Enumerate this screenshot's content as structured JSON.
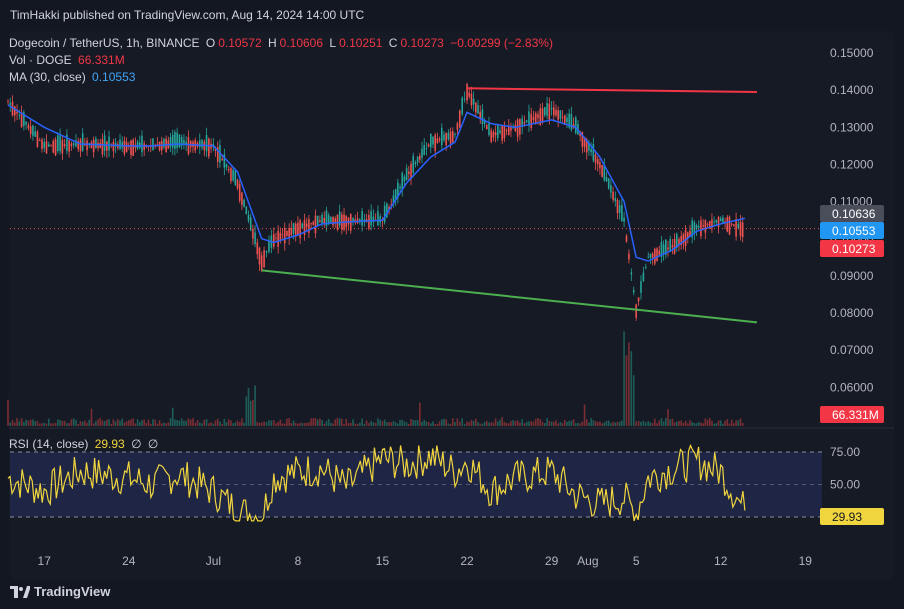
{
  "credit": "TimHakki published on TradingView.com, Aug 14, 2024 14:00 UTC",
  "legend": {
    "symbol": "Dogecoin / TetherUS, 1h, BINANCE",
    "o_label": "O",
    "o_val": "0.10572",
    "h_label": "H",
    "h_val": "0.10606",
    "l_label": "L",
    "l_val": "0.10251",
    "c_label": "C",
    "c_val": "0.10273",
    "change": "−0.00299 (−2.83%)",
    "vol_label": "Vol · DOGE",
    "vol_val": "66.331M",
    "ma_label": "MA (30, close)",
    "ma_val": "0.10553"
  },
  "rsi_legend": {
    "label": "RSI (14, close)",
    "val": "29.93",
    "extra1": "∅",
    "extra2": "∅"
  },
  "price_axis": [
    "0.15000",
    "0.14000",
    "0.13000",
    "0.12000",
    "0.11000",
    "0.10000",
    "0.09000",
    "0.08000",
    "0.07000",
    "0.06000"
  ],
  "tags": {
    "high": "0.10636",
    "ma": "0.10553",
    "close": "0.10273",
    "volume": "66.331M",
    "rsi": "29.93"
  },
  "rsi_axis": [
    "75.00",
    "50.00",
    "25.00"
  ],
  "time_axis": [
    "17",
    "24",
    "Jul",
    "8",
    "15",
    "22",
    "29",
    "Aug",
    "5",
    "12",
    "19"
  ],
  "footer": "TradingView",
  "colors": {
    "up": "#26a69a",
    "down": "#ef5350",
    "ma": "#2962ff",
    "rsi": "#f0d53e",
    "resistance": "#f23645",
    "support": "#4caf50"
  },
  "chart_data": {
    "type": "candlestick",
    "title": "Dogecoin / TetherUS, 1h, BINANCE",
    "ylim": [
      0.055,
      0.155
    ],
    "x": [
      "2024-06-14",
      "2024-06-17",
      "2024-06-20",
      "2024-06-24",
      "2024-06-26",
      "2024-06-28",
      "2024-07-01",
      "2024-07-03",
      "2024-07-05",
      "2024-07-06",
      "2024-07-08",
      "2024-07-10",
      "2024-07-12",
      "2024-07-15",
      "2024-07-17",
      "2024-07-19",
      "2024-07-21",
      "2024-07-22",
      "2024-07-24",
      "2024-07-26",
      "2024-07-29",
      "2024-07-31",
      "2024-08-02",
      "2024-08-04",
      "2024-08-05",
      "2024-08-06",
      "2024-08-08",
      "2024-08-10",
      "2024-08-12",
      "2024-08-14"
    ],
    "close": [
      0.137,
      0.125,
      0.1255,
      0.125,
      0.125,
      0.126,
      0.125,
      0.115,
      0.094,
      0.1,
      0.103,
      0.105,
      0.105,
      0.105,
      0.117,
      0.126,
      0.128,
      0.14,
      0.128,
      0.13,
      0.135,
      0.13,
      0.12,
      0.105,
      0.081,
      0.095,
      0.098,
      0.103,
      0.105,
      0.1027
    ],
    "ma30": [
      0.136,
      0.13,
      0.1255,
      0.125,
      0.125,
      0.1255,
      0.125,
      0.118,
      0.1,
      0.099,
      0.101,
      0.104,
      0.1045,
      0.105,
      0.115,
      0.122,
      0.126,
      0.134,
      0.131,
      0.13,
      0.132,
      0.13,
      0.122,
      0.11,
      0.095,
      0.094,
      0.097,
      0.102,
      0.104,
      0.1055
    ],
    "rsi": [
      55,
      45,
      60,
      55,
      50,
      58,
      45,
      30,
      25,
      55,
      60,
      62,
      48,
      70,
      65,
      72,
      60,
      68,
      45,
      55,
      60,
      42,
      35,
      40,
      28,
      55,
      62,
      68,
      60,
      30
    ],
    "resistance_line": {
      "from": [
        "2024-07-22",
        0.1405
      ],
      "to": [
        "2024-08-15",
        0.1395
      ]
    },
    "support_line": {
      "from": [
        "2024-07-05",
        0.0915
      ],
      "to": [
        "2024-08-15",
        0.0775
      ]
    }
  }
}
